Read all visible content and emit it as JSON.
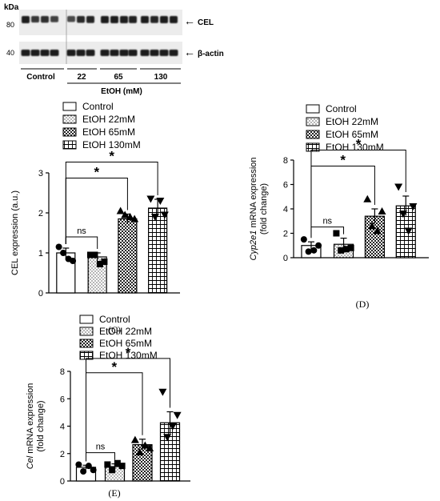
{
  "blot": {
    "kda_label": "kDa",
    "mw_markers": [
      "80",
      "40"
    ],
    "band_labels": [
      "CEL",
      "β-actin"
    ],
    "group_labels": [
      "Control",
      "22",
      "65",
      "130"
    ],
    "treatment_label": "EtOH (mM)"
  },
  "legend_entries": [
    "Control",
    "EtOH 22mM",
    "EtOH 65mM",
    "EtOH 130mM"
  ],
  "colors": {
    "ink": "#000000",
    "background": "#ffffff",
    "blot_band": "#1a1a1a"
  },
  "chart_data": [
    {
      "type": "bar",
      "panel_label": "(C)",
      "ylabel": "CEL expression (a.u.)",
      "ylabel_parts": [
        {
          "text": "CEL expression (a.u.)",
          "italic": false
        }
      ],
      "ylabel_line2": "",
      "ylim": [
        0,
        3
      ],
      "yticks": [
        "0",
        "1",
        "2",
        "3"
      ],
      "categories": [
        "Control",
        "EtOH 22mM",
        "EtOH 65mM",
        "EtOH 130mM"
      ],
      "values": [
        1.0,
        0.9,
        1.85,
        2.12
      ],
      "errors": [
        0.12,
        0.1,
        0.12,
        0.22
      ],
      "points": [
        [
          1.15,
          0.8,
          1.0,
          0.85
        ],
        [
          0.95,
          0.78,
          0.95,
          0.72
        ],
        [
          2.05,
          1.85,
          1.95,
          1.9
        ],
        [
          2.35,
          1.95,
          1.9,
          2.3
        ]
      ],
      "markers": [
        "circle",
        "square",
        "triangle-up",
        "triangle-down"
      ],
      "fills": [
        "white",
        "dots",
        "checker",
        "grid"
      ],
      "significance": [
        {
          "from": 0,
          "to": 1,
          "label": "ns",
          "level": 1
        },
        {
          "from": 0,
          "to": 2,
          "label": "*",
          "level": 2
        },
        {
          "from": 0,
          "to": 3,
          "label": "*",
          "level": 3
        }
      ],
      "grid": false,
      "legend": "top"
    },
    {
      "type": "bar",
      "panel_label": "(D)",
      "ylabel": "Cyp2e1 mRNA expression",
      "ylabel_parts": [
        {
          "text": "Cyp2e1",
          "italic": true
        },
        {
          "text": " mRNA expression",
          "italic": false
        }
      ],
      "ylabel_line2": "(fold change)",
      "ylim": [
        0,
        8
      ],
      "yticks": [
        "0",
        "2",
        "4",
        "6",
        "8"
      ],
      "categories": [
        "Control",
        "EtOH 22mM",
        "EtOH 65mM",
        "EtOH 130mM"
      ],
      "values": [
        1.0,
        1.1,
        3.4,
        4.25
      ],
      "errors": [
        0.3,
        0.5,
        0.6,
        0.8
      ],
      "points": [
        [
          1.5,
          1.0,
          0.5,
          0.6
        ],
        [
          2.0,
          0.8,
          0.6,
          0.7
        ],
        [
          4.8,
          3.8,
          2.6,
          2.2
        ],
        [
          5.8,
          4.2,
          3.6,
          2.2
        ]
      ],
      "markers": [
        "circle",
        "square",
        "triangle-up",
        "triangle-down"
      ],
      "fills": [
        "white",
        "dots",
        "checker",
        "grid"
      ],
      "significance": [
        {
          "from": 0,
          "to": 1,
          "label": "ns",
          "level": 1
        },
        {
          "from": 0,
          "to": 2,
          "label": "*",
          "level": 2
        },
        {
          "from": 0,
          "to": 3,
          "label": "*",
          "level": 3
        }
      ],
      "grid": false,
      "legend": "top"
    },
    {
      "type": "bar",
      "panel_label": "(E)",
      "ylabel": "Cel mRNA expression",
      "ylabel_parts": [
        {
          "text": "Cel",
          "italic": true
        },
        {
          "text": " mRNA expression",
          "italic": false
        }
      ],
      "ylabel_line2": "(fold change)",
      "ylim": [
        0,
        8
      ],
      "yticks": [
        "0",
        "2",
        "4",
        "6",
        "8"
      ],
      "categories": [
        "Control",
        "EtOH 22mM",
        "EtOH 65mM",
        "EtOH 130mM"
      ],
      "values": [
        1.0,
        1.05,
        2.65,
        4.25
      ],
      "errors": [
        0.15,
        0.2,
        0.4,
        0.8
      ],
      "points": [
        [
          1.2,
          0.8,
          0.7,
          1.1
        ],
        [
          1.2,
          1.1,
          0.8,
          1.3
        ],
        [
          3.0,
          2.4,
          2.1,
          2.6
        ],
        [
          6.5,
          4.8,
          3.2,
          4.0
        ]
      ],
      "markers": [
        "circle",
        "square",
        "triangle-up",
        "triangle-down"
      ],
      "fills": [
        "white",
        "dots",
        "checker",
        "grid"
      ],
      "significance": [
        {
          "from": 0,
          "to": 1,
          "label": "ns",
          "level": 1
        },
        {
          "from": 0,
          "to": 2,
          "label": "*",
          "level": 2
        },
        {
          "from": 0,
          "to": 3,
          "label": "*",
          "level": 3
        }
      ],
      "grid": false,
      "legend": "top"
    }
  ]
}
